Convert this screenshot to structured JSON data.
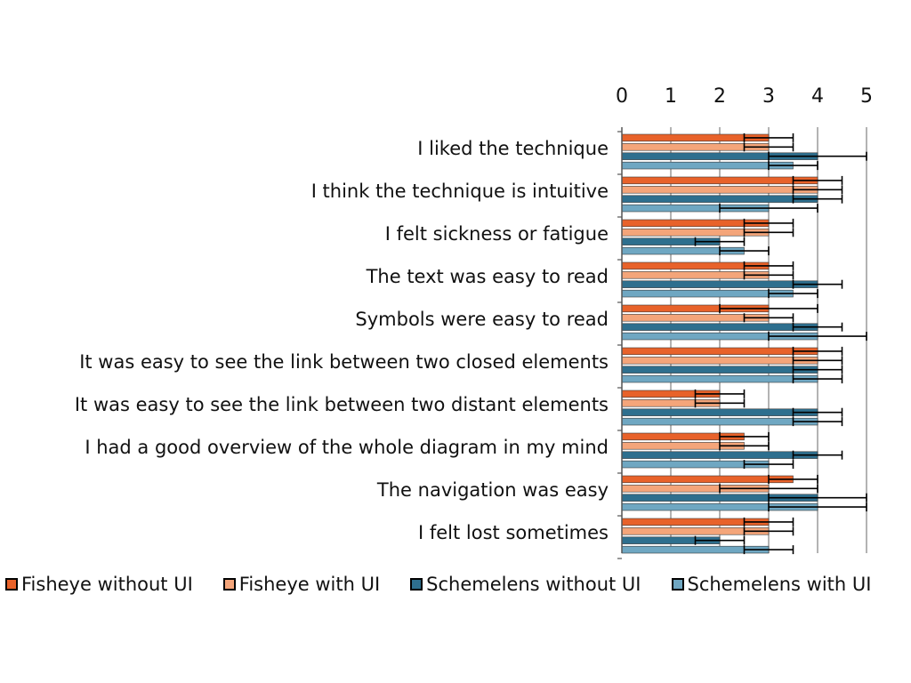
{
  "chart_data": {
    "type": "bar",
    "orientation": "horizontal",
    "xlim": [
      0,
      5
    ],
    "x_ticks": [
      "0",
      "1",
      "2",
      "3",
      "4",
      "5"
    ],
    "grid": true,
    "legend_position": "bottom",
    "categories": [
      "I liked the technique",
      "I think the technique is intuitive",
      "I felt sickness or fatigue",
      "The text was easy to read",
      "Symbols were easy to read",
      "It was easy to see the link between two closed elements",
      "It was easy to see the link between two distant elements",
      "I had a good overview of the whole diagram in my mind",
      "The navigation was easy",
      "I felt lost sometimes"
    ],
    "series": [
      {
        "name": "Fisheye without UI",
        "color": "#E8622A",
        "values": [
          3,
          4,
          3,
          3,
          3,
          4,
          2,
          2.5,
          3.5,
          3
        ],
        "error": [
          0.5,
          0.5,
          0.5,
          0.5,
          1,
          0.5,
          0.5,
          0.5,
          0.5,
          0.5
        ]
      },
      {
        "name": "Fisheye with UI",
        "color": "#F4A57A",
        "values": [
          3,
          4,
          3,
          3,
          3,
          4,
          2,
          2.5,
          3,
          3
        ],
        "error": [
          0.5,
          0.5,
          0.5,
          0.5,
          0.5,
          0.5,
          0.5,
          0.5,
          1,
          0.5
        ]
      },
      {
        "name": "Schemelens without UI",
        "color": "#2E6F8E",
        "values": [
          4,
          4,
          2,
          4,
          4,
          4,
          4,
          4,
          4,
          2
        ],
        "error": [
          1,
          0.5,
          0.5,
          0.5,
          0.5,
          0.5,
          0.5,
          0.5,
          1,
          0.5
        ]
      },
      {
        "name": "Schemelens with UI",
        "color": "#6FA7C2",
        "values": [
          3.5,
          3,
          2.5,
          3.5,
          4,
          4,
          4,
          3,
          4,
          3
        ],
        "error": [
          0.5,
          1,
          0.5,
          0.5,
          1,
          0.5,
          0.5,
          0.5,
          1,
          0.5
        ]
      }
    ]
  }
}
